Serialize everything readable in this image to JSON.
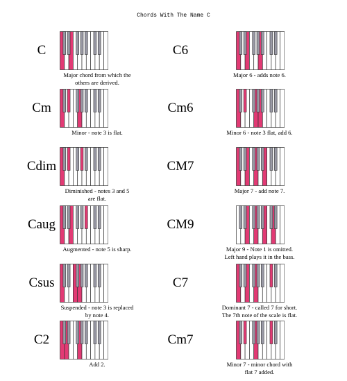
{
  "title": "Chords With The Name C",
  "colors": {
    "highlight": "#e23a74",
    "black_key": "#9a9aa6",
    "white_key": "#ffffff",
    "outline": "#333333"
  },
  "keyboard_layout": {
    "white_keys": 11,
    "black_after_white": [
      0,
      1,
      3,
      4,
      5,
      7,
      8
    ]
  },
  "chords": [
    {
      "name": "C",
      "caption": "Major chord from which the\nothers are derived.",
      "white": [
        0,
        2
      ],
      "black": []
    },
    {
      "name": "C6",
      "caption": "Major 6 - adds note 6.",
      "white": [
        0,
        2,
        5
      ],
      "black": []
    },
    {
      "name": "Cm",
      "caption": "Minor - note 3 is flat.",
      "white": [
        0,
        4
      ],
      "black": [
        1
      ]
    },
    {
      "name": "Cm6",
      "caption": "Minor 6 - note 3 flat, add 6.",
      "white": [
        0,
        4,
        5
      ],
      "black": [
        1
      ]
    },
    {
      "name": "Cdim",
      "caption": "Diminished - notes 3 and 5\nare flat.",
      "white": [
        0
      ],
      "black": [
        1,
        3
      ]
    },
    {
      "name": "CM7",
      "caption": "Major 7 - add note 7.",
      "white": [
        0,
        2,
        4,
        6
      ],
      "black": []
    },
    {
      "name": "Caug",
      "caption": "Augmented - note 5 is sharp.",
      "white": [
        0,
        2
      ],
      "black": [
        4
      ]
    },
    {
      "name": "CM9",
      "caption": "Major 9 - Note 1 is omitted.\nLeft hand plays it in the bass.",
      "white": [
        2,
        4,
        6,
        8
      ],
      "black": []
    },
    {
      "name": "Csus",
      "caption": "Suspended - note 3 is replaced\nby note 4.",
      "white": [
        0,
        3,
        4
      ],
      "black": []
    },
    {
      "name": "C7",
      "caption": "Dominant 7 - called 7 for short.\nThe 7th note of the scale is flat.",
      "white": [
        0,
        2,
        4
      ],
      "black": [
        5
      ]
    },
    {
      "name": "C2",
      "caption": "Add 2.",
      "white": [
        0,
        1,
        4
      ],
      "black": []
    },
    {
      "name": "Cm7",
      "caption": "Minor 7 - minor chord with\nflat 7 added.",
      "white": [
        0,
        4
      ],
      "black": [
        1,
        5
      ]
    }
  ]
}
